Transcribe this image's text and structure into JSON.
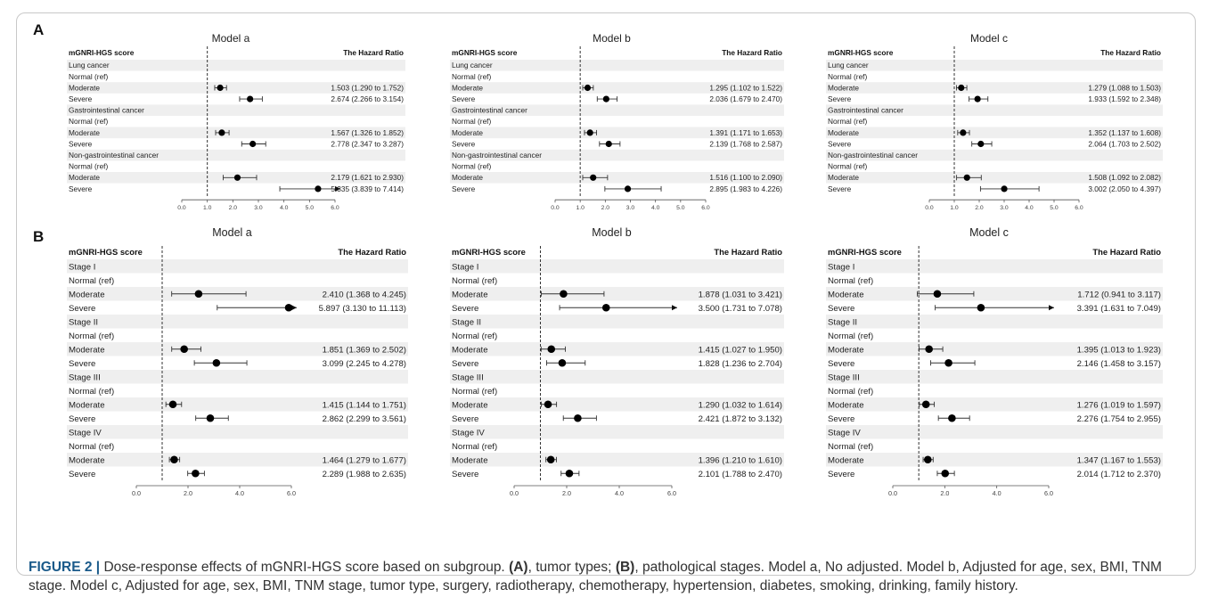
{
  "figure_number": "FIGURE 2 |",
  "caption": {
    "intro": "Dose-response effects of mGNRI-HGS score based on subgroup.",
    "a_tag": "(A)",
    "a_text": ", tumor types;",
    "b_tag": "(B)",
    "b_text": ", pathological stages. Model a, No adjusted. Model b, Adjusted for age, sex, BMI, TNM stage. Model c, Adjusted for age, sex, BMI, TNM stage, tumor type, surgery, radiotherapy, chemotherapy, hypertension, diabetes, smoking, drinking, family history."
  },
  "colors": {
    "row_band": "#efefef",
    "marker": "#000000",
    "ref_line": "#333333",
    "caption_accent": "#1a5a8a"
  },
  "chart_data": [
    {
      "panel": "A",
      "type": "forest",
      "title": "Model a",
      "col_label": "mGNRI-HGS score",
      "col_value": "The Hazard Ratio",
      "xlim": [
        0,
        6
      ],
      "xticks": [
        "0.0",
        "1.0",
        "2.0",
        "3.0",
        "4.0",
        "5.0",
        "6.0"
      ],
      "ref": 1,
      "rows": [
        {
          "label": "Lung cancer"
        },
        {
          "label": "Normal (ref)"
        },
        {
          "label": "Moderate",
          "hr": 1.503,
          "lo": 1.29,
          "hi": 1.752,
          "text": "1.503 (1.290 to 1.752)"
        },
        {
          "label": "Severe",
          "hr": 2.674,
          "lo": 2.266,
          "hi": 3.154,
          "text": "2.674 (2.266 to 3.154)"
        },
        {
          "label": "Gastrointestinal cancer"
        },
        {
          "label": "Normal (ref)"
        },
        {
          "label": "Moderate",
          "hr": 1.567,
          "lo": 1.326,
          "hi": 1.852,
          "text": "1.567 (1.326 to 1.852)"
        },
        {
          "label": "Severe",
          "hr": 2.778,
          "lo": 2.347,
          "hi": 3.287,
          "text": "2.778 (2.347 to 3.287)"
        },
        {
          "label": "Non-gastrointestinal cancer"
        },
        {
          "label": "Normal (ref)"
        },
        {
          "label": "Moderate",
          "hr": 2.179,
          "lo": 1.621,
          "hi": 2.93,
          "text": "2.179 (1.621 to 2.930)"
        },
        {
          "label": "Severe",
          "hr": 5.335,
          "lo": 3.839,
          "hi": 7.414,
          "text": "5.335 (3.839 to 7.414)"
        }
      ]
    },
    {
      "panel": "A",
      "type": "forest",
      "title": "Model b",
      "col_label": "mGNRI-HGS score",
      "col_value": "The Hazard Ratio",
      "xlim": [
        0,
        6
      ],
      "xticks": [
        "0.0",
        "1.0",
        "2.0",
        "3.0",
        "4.0",
        "5.0",
        "6.0"
      ],
      "ref": 1,
      "rows": [
        {
          "label": "Lung cancer"
        },
        {
          "label": "Normal (ref)"
        },
        {
          "label": "Moderate",
          "hr": 1.295,
          "lo": 1.102,
          "hi": 1.522,
          "text": "1.295 (1.102 to 1.522)"
        },
        {
          "label": "Severe",
          "hr": 2.036,
          "lo": 1.679,
          "hi": 2.47,
          "text": "2.036 (1.679 to 2.470)"
        },
        {
          "label": "Gastrointestinal cancer"
        },
        {
          "label": "Normal (ref)"
        },
        {
          "label": "Moderate",
          "hr": 1.391,
          "lo": 1.171,
          "hi": 1.653,
          "text": "1.391 (1.171 to 1.653)"
        },
        {
          "label": "Severe",
          "hr": 2.139,
          "lo": 1.768,
          "hi": 2.587,
          "text": "2.139 (1.768 to 2.587)"
        },
        {
          "label": "Non-gastrointestinal cancer"
        },
        {
          "label": "Normal (ref)"
        },
        {
          "label": "Moderate",
          "hr": 1.516,
          "lo": 1.1,
          "hi": 2.09,
          "text": "1.516 (1.100 to 2.090)"
        },
        {
          "label": "Severe",
          "hr": 2.895,
          "lo": 1.983,
          "hi": 4.226,
          "text": "2.895 (1.983 to 4.226)"
        }
      ]
    },
    {
      "panel": "A",
      "type": "forest",
      "title": "Model c",
      "col_label": "mGNRI-HGS score",
      "col_value": "The Hazard Ratio",
      "xlim": [
        0,
        6
      ],
      "xticks": [
        "0.0",
        "1.0",
        "2.0",
        "3.0",
        "4.0",
        "5.0",
        "6.0"
      ],
      "ref": 1,
      "rows": [
        {
          "label": "Lung cancer"
        },
        {
          "label": "Normal (ref)"
        },
        {
          "label": "Moderate",
          "hr": 1.279,
          "lo": 1.088,
          "hi": 1.503,
          "text": "1.279 (1.088 to 1.503)"
        },
        {
          "label": "Severe",
          "hr": 1.933,
          "lo": 1.592,
          "hi": 2.348,
          "text": "1.933 (1.592 to 2.348)"
        },
        {
          "label": "Gastrointestinal cancer"
        },
        {
          "label": "Normal (ref)"
        },
        {
          "label": "Moderate",
          "hr": 1.352,
          "lo": 1.137,
          "hi": 1.608,
          "text": "1.352 (1.137 to 1.608)"
        },
        {
          "label": "Severe",
          "hr": 2.064,
          "lo": 1.703,
          "hi": 2.502,
          "text": "2.064 (1.703 to 2.502)"
        },
        {
          "label": "Non-gastrointestinal cancer"
        },
        {
          "label": "Normal (ref)"
        },
        {
          "label": "Moderate",
          "hr": 1.508,
          "lo": 1.092,
          "hi": 2.082,
          "text": "1.508 (1.092 to 2.082)"
        },
        {
          "label": "Severe",
          "hr": 3.002,
          "lo": 2.05,
          "hi": 4.397,
          "text": "3.002 (2.050 to 4.397)"
        }
      ]
    },
    {
      "panel": "B",
      "type": "forest",
      "title": "Model a",
      "col_label": "mGNRI-HGS score",
      "col_value": "The Hazard Ratio",
      "xlim": [
        0,
        6
      ],
      "xticks": [
        "0.0",
        "2.0",
        "4.0",
        "6.0"
      ],
      "ref": 1,
      "rows": [
        {
          "label": "Stage I"
        },
        {
          "label": "Normal (ref)"
        },
        {
          "label": "Moderate",
          "hr": 2.41,
          "lo": 1.368,
          "hi": 4.245,
          "text": "2.410 (1.368 to 4.245)"
        },
        {
          "label": "Severe",
          "hr": 5.897,
          "lo": 3.13,
          "hi": 11.113,
          "text": "5.897 (3.130 to 11.113)"
        },
        {
          "label": "Stage II"
        },
        {
          "label": "Normal (ref)"
        },
        {
          "label": "Moderate",
          "hr": 1.851,
          "lo": 1.369,
          "hi": 2.502,
          "text": "1.851 (1.369 to 2.502)"
        },
        {
          "label": "Severe",
          "hr": 3.099,
          "lo": 2.245,
          "hi": 4.278,
          "text": "3.099 (2.245 to 4.278)"
        },
        {
          "label": "Stage III"
        },
        {
          "label": "Normal (ref)"
        },
        {
          "label": "Moderate",
          "hr": 1.415,
          "lo": 1.144,
          "hi": 1.751,
          "text": "1.415 (1.144 to 1.751)"
        },
        {
          "label": "Severe",
          "hr": 2.862,
          "lo": 2.299,
          "hi": 3.561,
          "text": "2.862 (2.299 to 3.561)"
        },
        {
          "label": "Stage IV"
        },
        {
          "label": "Normal (ref)"
        },
        {
          "label": "Moderate",
          "hr": 1.464,
          "lo": 1.279,
          "hi": 1.677,
          "text": "1.464 (1.279 to 1.677)"
        },
        {
          "label": "Severe",
          "hr": 2.289,
          "lo": 1.988,
          "hi": 2.635,
          "text": "2.289 (1.988 to 2.635)"
        }
      ]
    },
    {
      "panel": "B",
      "type": "forest",
      "title": "Model b",
      "col_label": "mGNRI-HGS score",
      "col_value": "The Hazard Ratio",
      "xlim": [
        0,
        6
      ],
      "xticks": [
        "0.0",
        "2.0",
        "4.0",
        "6.0"
      ],
      "ref": 1,
      "rows": [
        {
          "label": "Stage I"
        },
        {
          "label": "Normal (ref)"
        },
        {
          "label": "Moderate",
          "hr": 1.878,
          "lo": 1.031,
          "hi": 3.421,
          "text": "1.878 (1.031 to 3.421)"
        },
        {
          "label": "Severe",
          "hr": 3.5,
          "lo": 1.731,
          "hi": 7.078,
          "text": "3.500 (1.731 to 7.078)"
        },
        {
          "label": "Stage II"
        },
        {
          "label": "Normal (ref)"
        },
        {
          "label": "Moderate",
          "hr": 1.415,
          "lo": 1.027,
          "hi": 1.95,
          "text": "1.415 (1.027 to 1.950)"
        },
        {
          "label": "Severe",
          "hr": 1.828,
          "lo": 1.236,
          "hi": 2.704,
          "text": "1.828 (1.236 to 2.704)"
        },
        {
          "label": "Stage III"
        },
        {
          "label": "Normal (ref)"
        },
        {
          "label": "Moderate",
          "hr": 1.29,
          "lo": 1.032,
          "hi": 1.614,
          "text": "1.290 (1.032 to 1.614)"
        },
        {
          "label": "Severe",
          "hr": 2.421,
          "lo": 1.872,
          "hi": 3.132,
          "text": "2.421 (1.872 to 3.132)"
        },
        {
          "label": "Stage IV"
        },
        {
          "label": "Normal (ref)"
        },
        {
          "label": "Moderate",
          "hr": 1.396,
          "lo": 1.21,
          "hi": 1.61,
          "text": "1.396 (1.210 to 1.610)"
        },
        {
          "label": "Severe",
          "hr": 2.101,
          "lo": 1.788,
          "hi": 2.47,
          "text": "2.101 (1.788 to 2.470)"
        }
      ]
    },
    {
      "panel": "B",
      "type": "forest",
      "title": "Model c",
      "col_label": "mGNRI-HGS score",
      "col_value": "The Hazard Ratio",
      "xlim": [
        0,
        6
      ],
      "xticks": [
        "0.0",
        "2.0",
        "4.0",
        "6.0"
      ],
      "ref": 1,
      "rows": [
        {
          "label": "Stage I"
        },
        {
          "label": "Normal (ref)"
        },
        {
          "label": "Moderate",
          "hr": 1.712,
          "lo": 0.941,
          "hi": 3.117,
          "text": "1.712 (0.941 to 3.117)"
        },
        {
          "label": "Severe",
          "hr": 3.391,
          "lo": 1.631,
          "hi": 7.049,
          "text": "3.391 (1.631 to 7.049)"
        },
        {
          "label": "Stage II"
        },
        {
          "label": "Normal (ref)"
        },
        {
          "label": "Moderate",
          "hr": 1.395,
          "lo": 1.013,
          "hi": 1.923,
          "text": "1.395 (1.013 to 1.923)"
        },
        {
          "label": "Severe",
          "hr": 2.146,
          "lo": 1.458,
          "hi": 3.157,
          "text": "2.146 (1.458 to 3.157)"
        },
        {
          "label": "Stage III"
        },
        {
          "label": "Normal (ref)"
        },
        {
          "label": "Moderate",
          "hr": 1.276,
          "lo": 1.019,
          "hi": 1.597,
          "text": "1.276 (1.019 to 1.597)"
        },
        {
          "label": "Severe",
          "hr": 2.276,
          "lo": 1.754,
          "hi": 2.955,
          "text": "2.276 (1.754 to 2.955)"
        },
        {
          "label": "Stage IV"
        },
        {
          "label": "Normal (ref)"
        },
        {
          "label": "Moderate",
          "hr": 1.347,
          "lo": 1.167,
          "hi": 1.553,
          "text": "1.347 (1.167 to 1.553)"
        },
        {
          "label": "Severe",
          "hr": 2.014,
          "lo": 1.712,
          "hi": 2.37,
          "text": "2.014 (1.712 to 2.370)"
        }
      ]
    }
  ]
}
